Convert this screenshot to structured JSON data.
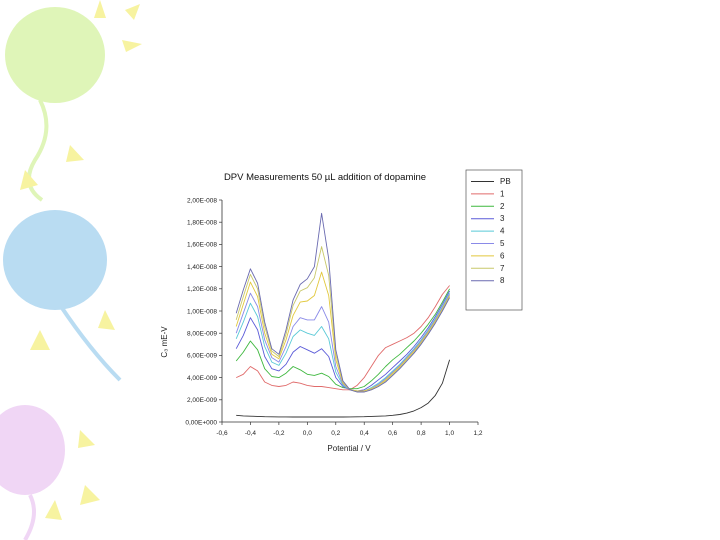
{
  "slide": {
    "decor_colors": [
      "#dff5b8",
      "#b9dcf2",
      "#f0d6f5",
      "#f7f3a0"
    ]
  },
  "chart_data": {
    "type": "line",
    "title": "DPV Measurements 50 µL addition of dopamine",
    "xlabel": "Potential / V",
    "ylabel": "C₃ mE-V",
    "xlim": [
      -0.6,
      1.2
    ],
    "ylim": [
      0,
      2e-08
    ],
    "x_ticks": [
      -0.6,
      -0.4,
      -0.2,
      0.0,
      0.2,
      0.4,
      0.6,
      0.8,
      1.0,
      1.2
    ],
    "x_tick_labels": [
      "-0,6",
      "-0,4",
      "-0,2",
      "0,0",
      "0,2",
      "0,4",
      "0,6",
      "0,8",
      "1,0",
      "1,2"
    ],
    "y_ticks": [
      0,
      2e-09,
      4e-09,
      6e-09,
      8e-09,
      1e-08,
      1.2e-08,
      1.4e-08,
      1.6e-08,
      1.8e-08,
      2e-08
    ],
    "y_tick_labels": [
      "0,00E+000",
      "2,00E-009",
      "4,00E-009",
      "6,00E-009",
      "8,00E-009",
      "1,00E-008",
      "1,20E-008",
      "1,40E-008",
      "1,60E-008",
      "1,80E-008",
      "2,00E-008"
    ],
    "grid": false,
    "legend_position": "right",
    "x": [
      -0.5,
      -0.45,
      -0.4,
      -0.35,
      -0.3,
      -0.25,
      -0.2,
      -0.15,
      -0.1,
      -0.05,
      0.0,
      0.05,
      0.1,
      0.15,
      0.2,
      0.25,
      0.3,
      0.35,
      0.4,
      0.45,
      0.5,
      0.55,
      0.6,
      0.65,
      0.7,
      0.75,
      0.8,
      0.85,
      0.9,
      0.95,
      1.0
    ],
    "series": [
      {
        "name": "PB",
        "color": "#333333",
        "values": [
          6e-10,
          5.5e-10,
          5.2e-10,
          5e-10,
          4.8e-10,
          4.7e-10,
          4.6e-10,
          4.6e-10,
          4.5e-10,
          4.5e-10,
          4.5e-10,
          4.5e-10,
          4.5e-10,
          4.5e-10,
          4.5e-10,
          4.5e-10,
          4.6e-10,
          4.7e-10,
          4.8e-10,
          5e-10,
          5.2e-10,
          5.5e-10,
          6e-10,
          6.8e-10,
          8e-10,
          1e-09,
          1.3e-09,
          1.7e-09,
          2.4e-09,
          3.5e-09,
          5.6e-09
        ]
      },
      {
        "name": "1",
        "color": "#e06a6a",
        "values": [
          4e-09,
          4.3e-09,
          5e-09,
          4.6e-09,
          3.6e-09,
          3.3e-09,
          3.2e-09,
          3.3e-09,
          3.6e-09,
          3.5e-09,
          3.3e-09,
          3.2e-09,
          3.2e-09,
          3.1e-09,
          3e-09,
          2.9e-09,
          2.9e-09,
          3.3e-09,
          4e-09,
          5e-09,
          6e-09,
          6.7e-09,
          7e-09,
          7.3e-09,
          7.6e-09,
          8e-09,
          8.6e-09,
          9.4e-09,
          1.04e-08,
          1.15e-08,
          1.23e-08
        ]
      },
      {
        "name": "2",
        "color": "#3fb83f",
        "values": [
          5.5e-09,
          6.3e-09,
          7.3e-09,
          6.5e-09,
          4.8e-09,
          4.1e-09,
          4e-09,
          4.4e-09,
          5e-09,
          4.7e-09,
          4.3e-09,
          4.2e-09,
          4.4e-09,
          4.1e-09,
          3.4e-09,
          3.1e-09,
          3e-09,
          3e-09,
          3.2e-09,
          3.7e-09,
          4.3e-09,
          5e-09,
          5.6e-09,
          6.1e-09,
          6.7e-09,
          7.3e-09,
          8e-09,
          8.8e-09,
          9.7e-09,
          1.08e-08,
          1.2e-08
        ]
      },
      {
        "name": "3",
        "color": "#5a5ad8",
        "values": [
          6.6e-09,
          7.8e-09,
          9.4e-09,
          8.3e-09,
          5.9e-09,
          4.8e-09,
          4.6e-09,
          5.2e-09,
          6.3e-09,
          6.8e-09,
          6.5e-09,
          6.2e-09,
          6.6e-09,
          5.9e-09,
          4e-09,
          3.2e-09,
          2.9e-09,
          2.8e-09,
          2.9e-09,
          3.3e-09,
          3.8e-09,
          4.3e-09,
          4.9e-09,
          5.5e-09,
          6.1e-09,
          6.8e-09,
          7.6e-09,
          8.5e-09,
          9.5e-09,
          1.06e-08,
          1.18e-08
        ]
      },
      {
        "name": "4",
        "color": "#59c9d6",
        "values": [
          7.5e-09,
          9e-09,
          1.07e-08,
          9.5e-09,
          6.8e-09,
          5.4e-09,
          5.1e-09,
          6.2e-09,
          7.7e-09,
          8.3e-09,
          8e-09,
          7.8e-09,
          8.6e-09,
          7.5e-09,
          4.5e-09,
          3.3e-09,
          2.9e-09,
          2.8e-09,
          2.8e-09,
          3.1e-09,
          3.5e-09,
          4e-09,
          4.6e-09,
          5.2e-09,
          5.9e-09,
          6.6e-09,
          7.4e-09,
          8.3e-09,
          9.3e-09,
          1.04e-08,
          1.16e-08
        ]
      },
      {
        "name": "5",
        "color": "#8a8ae8",
        "values": [
          8e-09,
          9.8e-09,
          1.16e-08,
          1.04e-08,
          7.4e-09,
          5.8e-09,
          5.4e-09,
          6.8e-09,
          8.6e-09,
          9.4e-09,
          9.2e-09,
          9.2e-09,
          1.04e-08,
          9e-09,
          5e-09,
          3.4e-09,
          2.9e-09,
          2.8e-09,
          2.8e-09,
          3e-09,
          3.4e-09,
          3.9e-09,
          4.5e-09,
          5.1e-09,
          5.8e-09,
          6.5e-09,
          7.3e-09,
          8.2e-09,
          9.2e-09,
          1.03e-08,
          1.15e-08
        ]
      },
      {
        "name": "6",
        "color": "#e2c83c",
        "values": [
          8.6e-09,
          1.06e-08,
          1.26e-08,
          1.13e-08,
          8e-09,
          6.1e-09,
          5.7e-09,
          7.4e-09,
          9.6e-09,
          1.08e-08,
          1.09e-08,
          1.14e-08,
          1.35e-08,
          1.14e-08,
          5.6e-09,
          3.5e-09,
          2.9e-09,
          2.8e-09,
          2.8e-09,
          3e-09,
          3.3e-09,
          3.8e-09,
          4.4e-09,
          5e-09,
          5.7e-09,
          6.4e-09,
          7.2e-09,
          8.1e-09,
          9.1e-09,
          1.02e-08,
          1.14e-08
        ]
      },
      {
        "name": "7",
        "color": "#c8c86a",
        "values": [
          9.2e-09,
          1.13e-08,
          1.33e-08,
          1.2e-08,
          8.6e-09,
          6.4e-09,
          5.9e-09,
          7.9e-09,
          1.05e-08,
          1.18e-08,
          1.21e-08,
          1.3e-08,
          1.58e-08,
          1.32e-08,
          6.1e-09,
          3.6e-09,
          2.9e-09,
          2.7e-09,
          2.7e-09,
          2.9e-09,
          3.2e-09,
          3.7e-09,
          4.3e-09,
          4.9e-09,
          5.6e-09,
          6.3e-09,
          7.1e-09,
          8e-09,
          9e-09,
          1.01e-08,
          1.13e-08
        ]
      },
      {
        "name": "8",
        "color": "#6a6ab0",
        "values": [
          9.8e-09,
          1.19e-08,
          1.38e-08,
          1.25e-08,
          9e-09,
          6.6e-09,
          6.1e-09,
          8.3e-09,
          1.1e-08,
          1.24e-08,
          1.29e-08,
          1.4e-08,
          1.88e-08,
          1.47e-08,
          6.5e-09,
          3.7e-09,
          2.9e-09,
          2.7e-09,
          2.7e-09,
          2.9e-09,
          3.2e-09,
          3.6e-09,
          4.2e-09,
          4.8e-09,
          5.5e-09,
          6.2e-09,
          7e-09,
          7.9e-09,
          8.9e-09,
          1e-08,
          1.12e-08
        ]
      }
    ]
  }
}
